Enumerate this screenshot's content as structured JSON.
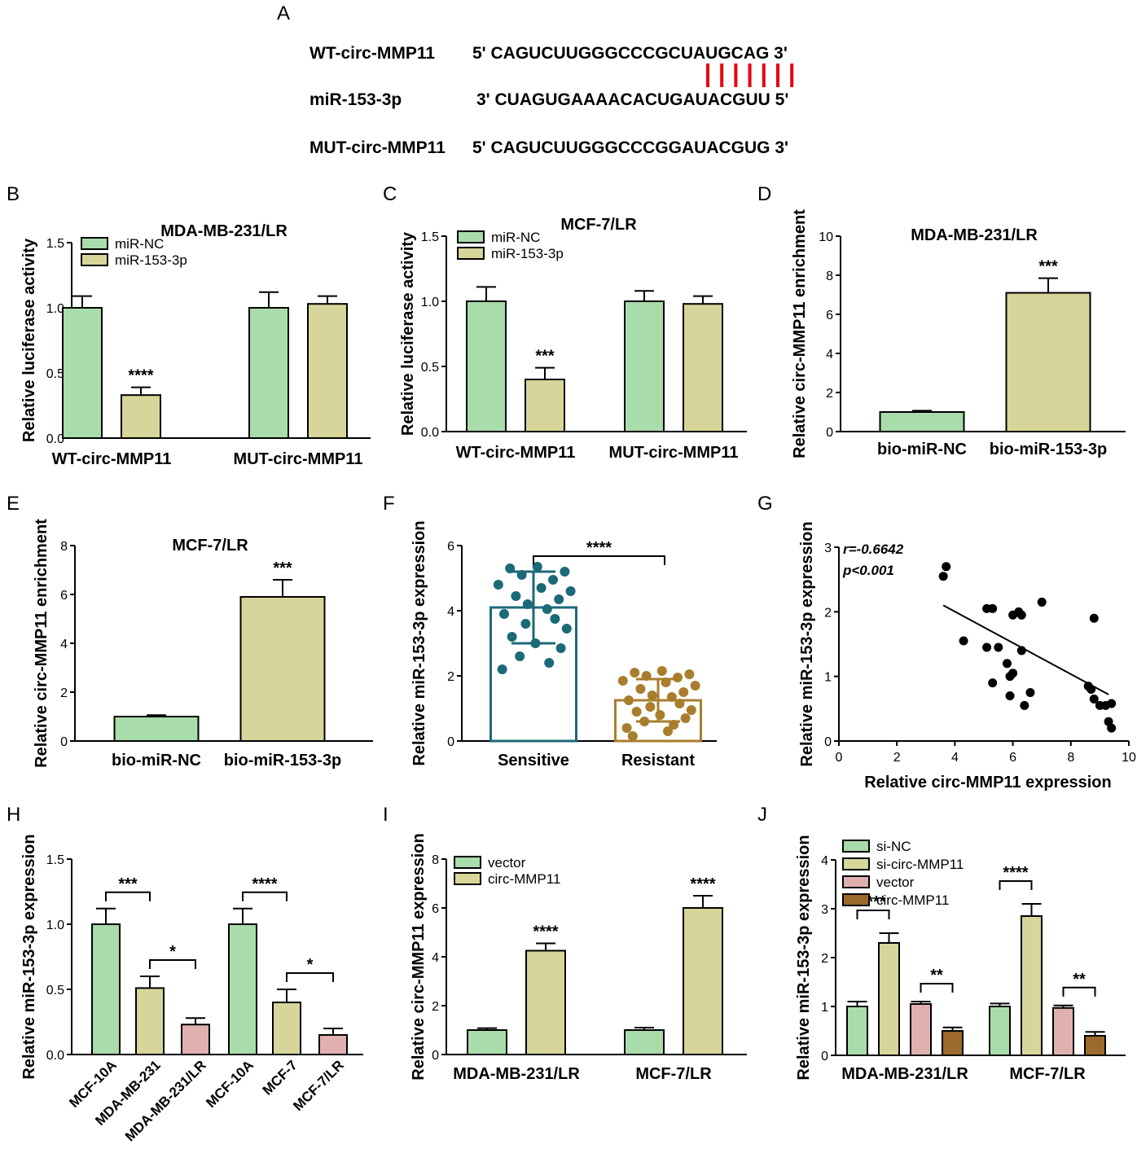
{
  "colors": {
    "green": "#a8dcaa",
    "khaki": "#d8d59a",
    "pink": "#e0b0b0",
    "brown": "#9c6a2a",
    "teal": "#1c6a78",
    "gold": "#a87e2e",
    "pairing": "#e8000f"
  },
  "panel_a": {
    "label": "A",
    "rows": [
      {
        "name": "WT-circ-MMP11",
        "seq": "5' CAGUCUUGGGCCCGCUAUGCAG 3'"
      },
      {
        "name": "miR-153-3p",
        "seq": "3' CUAGUGAAAACACUGAUACGUU 5'"
      },
      {
        "name": "MUT-circ-MMP11",
        "seq": "5' CAGUCUUGGGCCCGGAUACGUG 3'"
      }
    ],
    "pairing_lines": 7
  },
  "chart_data": [
    {
      "id": "B",
      "label": "B",
      "type": "bar",
      "title": "MDA-MB-231/LR",
      "ylabel": "Relative luciferase activity",
      "ylim": [
        0,
        1.5
      ],
      "yticks": [
        "0.0",
        "0.5",
        "1.0",
        "1.5"
      ],
      "categories": [
        "WT-circ-MMP11",
        "MUT-circ-MMP11"
      ],
      "series": [
        {
          "name": "miR-NC",
          "color": "green",
          "values": [
            1.0,
            1.0
          ],
          "errors": [
            0.09,
            0.12
          ]
        },
        {
          "name": "miR-153-3p",
          "color": "khaki",
          "values": [
            0.33,
            1.03
          ],
          "errors": [
            0.06,
            0.06
          ]
        }
      ],
      "annotations": [
        {
          "text": "****",
          "category": 0,
          "series": 1
        }
      ]
    },
    {
      "id": "C",
      "label": "C",
      "type": "bar",
      "title": "MCF-7/LR",
      "ylabel": "Relative luciferase activity",
      "ylim": [
        0,
        1.5
      ],
      "yticks": [
        "0.0",
        "0.5",
        "1.0",
        "1.5"
      ],
      "categories": [
        "WT-circ-MMP11",
        "MUT-circ-MMP11"
      ],
      "series": [
        {
          "name": "miR-NC",
          "color": "green",
          "values": [
            1.0,
            1.0
          ],
          "errors": [
            0.11,
            0.08
          ]
        },
        {
          "name": "miR-153-3p",
          "color": "khaki",
          "values": [
            0.4,
            0.98
          ],
          "errors": [
            0.09,
            0.06
          ]
        }
      ],
      "annotations": [
        {
          "text": "***",
          "category": 0,
          "series": 1
        }
      ]
    },
    {
      "id": "D",
      "label": "D",
      "type": "bar",
      "title": "MDA-MB-231/LR",
      "ylabel": "Relative circ-MMP11 enrichment",
      "ylim": [
        0,
        10
      ],
      "yticks": [
        "0",
        "2",
        "4",
        "6",
        "8",
        "10"
      ],
      "categories": [
        "bio-miR-NC",
        "bio-miR-153-3p"
      ],
      "bars": [
        {
          "value": 1.0,
          "error": 0.07,
          "color": "green"
        },
        {
          "value": 7.1,
          "error": 0.75,
          "color": "khaki"
        }
      ],
      "annotations": [
        {
          "text": "***",
          "bar": 1
        }
      ]
    },
    {
      "id": "E",
      "label": "E",
      "type": "bar",
      "title": "MCF-7/LR",
      "ylabel": "Relative circ-MMP11 enrichment",
      "ylim": [
        0,
        8
      ],
      "yticks": [
        "0",
        "2",
        "4",
        "6",
        "8"
      ],
      "categories": [
        "bio-miR-NC",
        "bio-miR-153-3p"
      ],
      "bars": [
        {
          "value": 1.0,
          "error": 0.06,
          "color": "green"
        },
        {
          "value": 5.9,
          "error": 0.7,
          "color": "khaki"
        }
      ],
      "annotations": [
        {
          "text": "***",
          "bar": 1
        }
      ]
    },
    {
      "id": "F",
      "label": "F",
      "type": "bar",
      "title": "",
      "ylabel": "Relative miR-153-3p expression",
      "ylim": [
        0,
        6
      ],
      "yticks": [
        "0",
        "2",
        "4",
        "6"
      ],
      "categories": [
        "Sensitive",
        "Resistant"
      ],
      "groups": [
        {
          "mean": 4.1,
          "sd": 1.1,
          "color": "teal",
          "points": [
            5.35,
            5.3,
            5.2,
            5.1,
            4.95,
            4.8,
            4.7,
            4.6,
            4.45,
            4.35,
            4.2,
            4.05,
            3.9,
            3.75,
            3.6,
            3.45,
            3.2,
            3.0,
            2.85,
            2.6,
            2.4,
            2.2
          ]
        },
        {
          "mean": 1.25,
          "sd": 0.65,
          "color": "gold",
          "points": [
            2.15,
            2.1,
            2.05,
            2.0,
            1.95,
            1.85,
            1.8,
            1.7,
            1.6,
            1.5,
            1.4,
            1.35,
            1.25,
            1.15,
            1.05,
            0.95,
            0.9,
            0.8,
            0.7,
            0.6,
            0.5,
            0.4,
            0.3,
            0.15
          ]
        }
      ],
      "bracket": {
        "text": "****"
      }
    },
    {
      "id": "G",
      "label": "G",
      "type": "scatter",
      "xlabel": "Relative circ-MMP11 expression",
      "ylabel": "Relative miR-153-3p expression",
      "xlim": [
        0,
        10
      ],
      "ylim": [
        0,
        3
      ],
      "xticks": [
        "0",
        "2",
        "4",
        "6",
        "8",
        "10"
      ],
      "yticks": [
        "0",
        "1",
        "2",
        "3"
      ],
      "stats": [
        "r=-0.6642",
        "p<0.001"
      ],
      "fit": [
        [
          3.6,
          2.1
        ],
        [
          9.3,
          0.72
        ]
      ],
      "points": [
        [
          3.6,
          2.55
        ],
        [
          3.7,
          2.7
        ],
        [
          4.3,
          1.55
        ],
        [
          5.1,
          2.05
        ],
        [
          5.3,
          2.05
        ],
        [
          5.1,
          1.45
        ],
        [
          5.5,
          1.45
        ],
        [
          5.3,
          0.9
        ],
        [
          5.8,
          1.2
        ],
        [
          5.9,
          1.0
        ],
        [
          6.0,
          1.05
        ],
        [
          5.9,
          0.7
        ],
        [
          6.0,
          1.95
        ],
        [
          6.2,
          2.0
        ],
        [
          6.3,
          1.95
        ],
        [
          6.3,
          1.4
        ],
        [
          6.4,
          0.55
        ],
        [
          6.6,
          0.75
        ],
        [
          7.0,
          2.15
        ],
        [
          8.6,
          0.85
        ],
        [
          8.7,
          0.8
        ],
        [
          8.8,
          1.9
        ],
        [
          8.8,
          0.65
        ],
        [
          9.0,
          0.55
        ],
        [
          9.2,
          0.55
        ],
        [
          9.3,
          0.3
        ],
        [
          9.4,
          0.2
        ],
        [
          9.4,
          0.58
        ]
      ]
    },
    {
      "id": "H",
      "label": "H",
      "type": "bar",
      "title": "",
      "ylabel": "Relative miR-153-3p expression",
      "ylim": [
        0,
        1.5
      ],
      "yticks": [
        "0.0",
        "0.5",
        "1.0",
        "1.5"
      ],
      "categories": [
        "MCF-10A",
        "MDA-MB-231",
        "MDA-MB-231/LR",
        "MCF-10A",
        "MCF-7",
        "MCF-7/LR"
      ],
      "bars": [
        {
          "value": 1.0,
          "error": 0.12,
          "color": "green"
        },
        {
          "value": 0.51,
          "error": 0.09,
          "color": "khaki"
        },
        {
          "value": 0.23,
          "error": 0.05,
          "color": "pink"
        },
        {
          "value": 1.0,
          "error": 0.12,
          "color": "green"
        },
        {
          "value": 0.4,
          "error": 0.1,
          "color": "khaki"
        },
        {
          "value": 0.15,
          "error": 0.05,
          "color": "pink"
        }
      ],
      "brackets": [
        {
          "from": 0,
          "to": 1,
          "text": "***"
        },
        {
          "from": 1,
          "to": 2,
          "text": "*"
        },
        {
          "from": 3,
          "to": 4,
          "text": "****"
        },
        {
          "from": 4,
          "to": 5,
          "text": "*"
        }
      ]
    },
    {
      "id": "I",
      "label": "I",
      "type": "bar",
      "title": "",
      "ylabel": "Relative circ-MMP11 expression",
      "ylim": [
        0,
        8
      ],
      "yticks": [
        "0",
        "2",
        "4",
        "6",
        "8"
      ],
      "categories": [
        "MDA-MB-231/LR",
        "MCF-7/LR"
      ],
      "series": [
        {
          "name": "vector",
          "color": "green",
          "values": [
            1.0,
            1.0
          ],
          "errors": [
            0.08,
            0.1
          ]
        },
        {
          "name": "circ-MMP11",
          "color": "khaki",
          "values": [
            4.25,
            6.0
          ],
          "errors": [
            0.3,
            0.5
          ]
        }
      ],
      "annotations": [
        {
          "text": "****",
          "category": 0,
          "series": 1
        },
        {
          "text": "****",
          "category": 1,
          "series": 1
        }
      ]
    },
    {
      "id": "J",
      "label": "J",
      "type": "bar",
      "title": "",
      "ylabel": "Relative miR-153-3p expression",
      "ylim": [
        0,
        4
      ],
      "yticks": [
        "0",
        "1",
        "2",
        "3",
        "4"
      ],
      "categories": [
        "MDA-MB-231/LR",
        "MCF-7/LR"
      ],
      "series": [
        {
          "name": "si-NC",
          "color": "green",
          "values": [
            1.0,
            1.0
          ],
          "errors": [
            0.1,
            0.06
          ]
        },
        {
          "name": "si-circ-MMP11",
          "color": "khaki",
          "values": [
            2.3,
            2.85
          ],
          "errors": [
            0.2,
            0.25
          ]
        },
        {
          "name": "vector",
          "color": "pink",
          "values": [
            1.05,
            0.97
          ],
          "errors": [
            0.05,
            0.05
          ]
        },
        {
          "name": "circ-MMP11",
          "color": "brown",
          "values": [
            0.5,
            0.4
          ],
          "errors": [
            0.07,
            0.08
          ]
        }
      ],
      "brackets": [
        {
          "category": 0,
          "from": 0,
          "to": 1,
          "text": "****"
        },
        {
          "category": 0,
          "from": 2,
          "to": 3,
          "text": "**"
        },
        {
          "category": 1,
          "from": 0,
          "to": 1,
          "text": "****"
        },
        {
          "category": 1,
          "from": 2,
          "to": 3,
          "text": "**"
        }
      ]
    }
  ]
}
